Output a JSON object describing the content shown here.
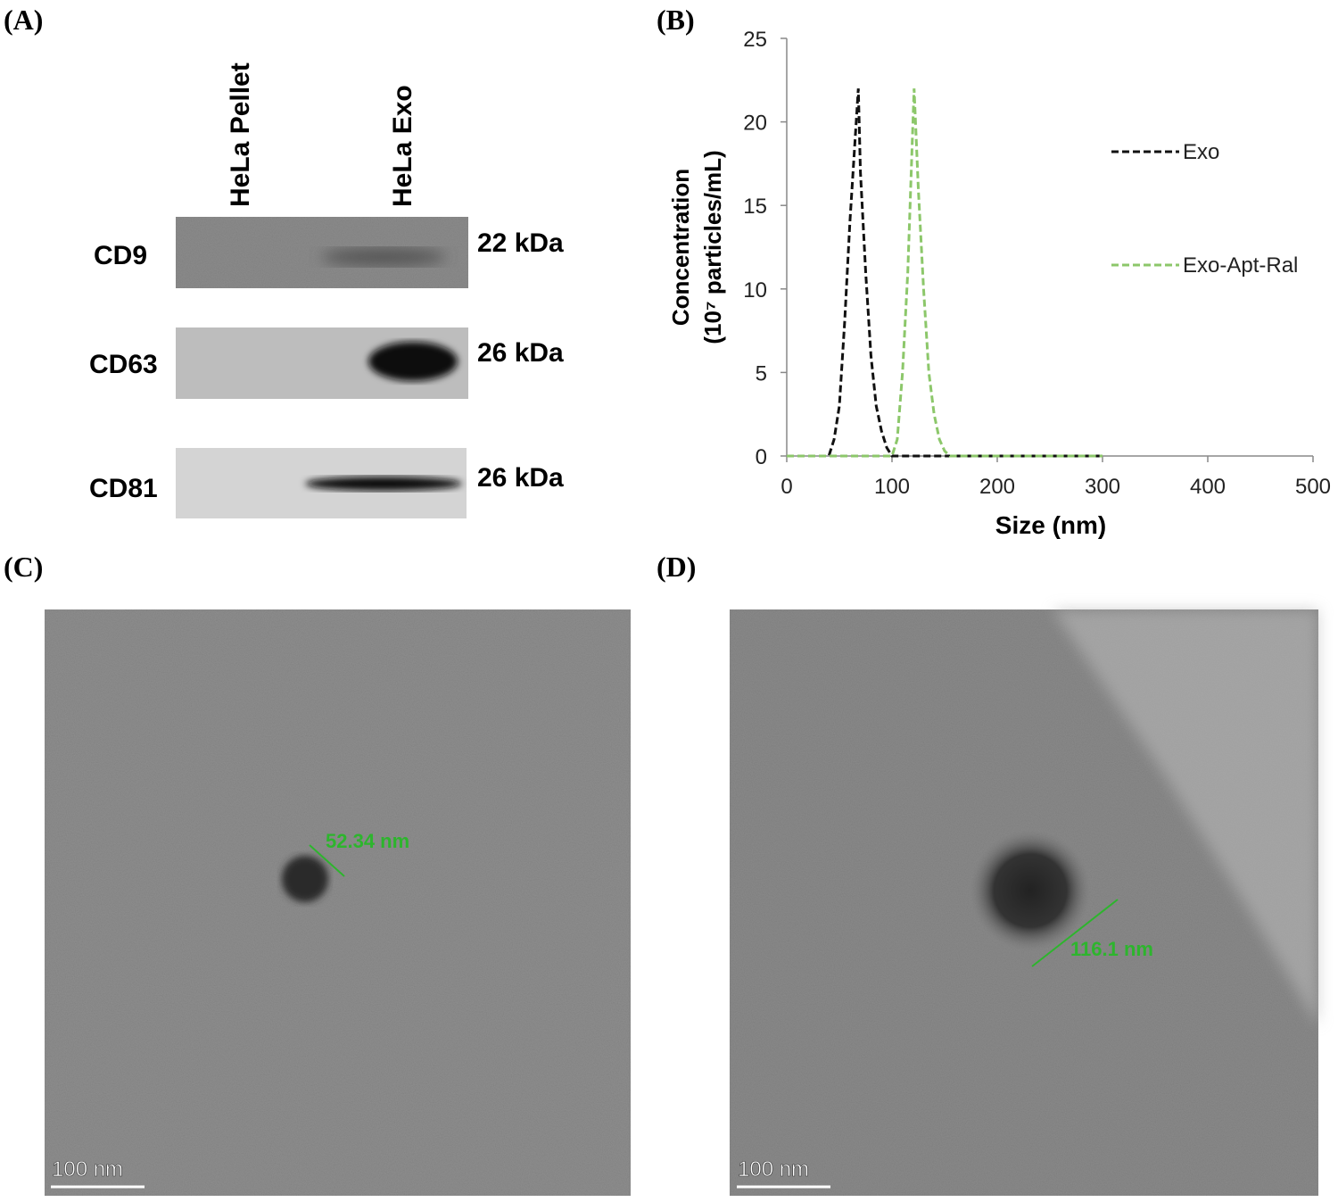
{
  "panel_a": {
    "label": "(A)",
    "lanes": [
      "HeLa Pellet",
      "HeLa Exo"
    ],
    "rows": [
      {
        "name": "CD9",
        "size": "22 kDa"
      },
      {
        "name": "CD63",
        "size": "26 kDa"
      },
      {
        "name": "CD81",
        "size": "26 kDa"
      }
    ]
  },
  "panel_b": {
    "label": "(B)"
  },
  "chart_data": {
    "type": "line",
    "y_label": [
      "Concentration",
      "(10⁷ particles/mL)"
    ],
    "x_label": "Size (nm)",
    "x": [
      0,
      40,
      45,
      50,
      55,
      60,
      65,
      68,
      70,
      75,
      80,
      85,
      90,
      95,
      100,
      105,
      110,
      115,
      121,
      125,
      130,
      135,
      140,
      145,
      150,
      155,
      200,
      300
    ],
    "series": [
      {
        "name": "Exo",
        "color": "#111111",
        "values": [
          0,
          0,
          1,
          3,
          8,
          14,
          19,
          22,
          17,
          11,
          6,
          3,
          1.5,
          0.5,
          0,
          0,
          0,
          0,
          0,
          0,
          0,
          0,
          0,
          0,
          0,
          0,
          0,
          0
        ]
      },
      {
        "name": "Exo-Apt-Ral",
        "color": "#8cc76a",
        "values": [
          0,
          0,
          0,
          0,
          0,
          0,
          0,
          0,
          0,
          0,
          0,
          0,
          0,
          0,
          0,
          1,
          5,
          11,
          22,
          16,
          10,
          5,
          2.5,
          1,
          0.3,
          0,
          0,
          0
        ]
      }
    ],
    "xlim": [
      0,
      500
    ],
    "xticks": [
      0,
      100,
      200,
      300,
      400,
      500
    ],
    "ylim": [
      0,
      25
    ],
    "yticks": [
      0,
      5,
      10,
      15,
      20,
      25
    ],
    "grid": false,
    "legend": "right"
  },
  "panel_c": {
    "label": "(C)",
    "measure": "52.34 nm",
    "scale": "100 nm"
  },
  "panel_d": {
    "label": "(D)",
    "measure": "116.1 nm",
    "scale": "100 nm"
  }
}
